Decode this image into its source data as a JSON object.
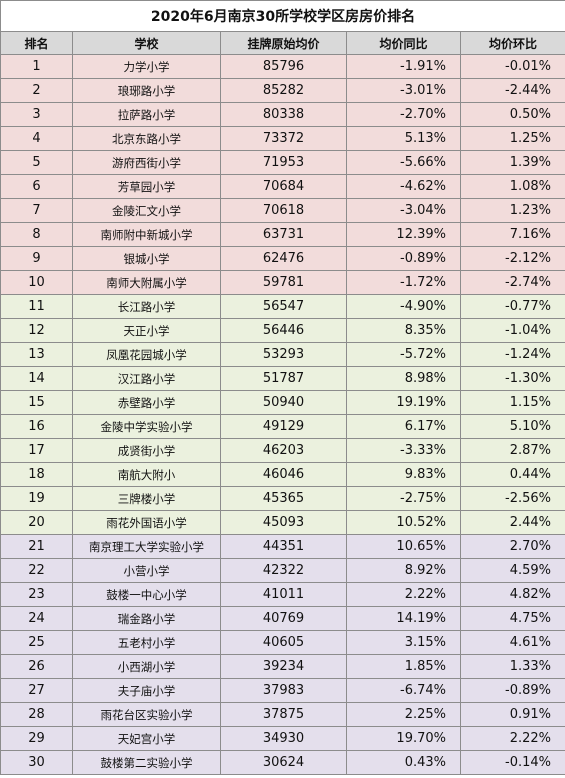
{
  "title": "2020年6月南京30所学校学区房房价排名",
  "headers": [
    "排名",
    "学校",
    "挂牌原始均价",
    "均价同比",
    "均价环比"
  ],
  "group_colors": {
    "1": "#f2dcdb",
    "2": "#ebf1de",
    "3": "#e4dfec"
  },
  "rows": [
    {
      "rank": "1",
      "school": "力学小学",
      "price": "85796",
      "yoy": "-1.91%",
      "mom": "-0.01%",
      "group": 1
    },
    {
      "rank": "2",
      "school": "琅琊路小学",
      "price": "85282",
      "yoy": "-3.01%",
      "mom": "-2.44%",
      "group": 1
    },
    {
      "rank": "3",
      "school": "拉萨路小学",
      "price": "80338",
      "yoy": "-2.70%",
      "mom": "0.50%",
      "group": 1
    },
    {
      "rank": "4",
      "school": "北京东路小学",
      "price": "73372",
      "yoy": "5.13%",
      "mom": "1.25%",
      "group": 1
    },
    {
      "rank": "5",
      "school": "游府西街小学",
      "price": "71953",
      "yoy": "-5.66%",
      "mom": "1.39%",
      "group": 1
    },
    {
      "rank": "6",
      "school": "芳草园小学",
      "price": "70684",
      "yoy": "-4.62%",
      "mom": "1.08%",
      "group": 1
    },
    {
      "rank": "7",
      "school": "金陵汇文小学",
      "price": "70618",
      "yoy": "-3.04%",
      "mom": "1.23%",
      "group": 1
    },
    {
      "rank": "8",
      "school": "南师附中新城小学",
      "price": "63731",
      "yoy": "12.39%",
      "mom": "7.16%",
      "group": 1
    },
    {
      "rank": "9",
      "school": "银城小学",
      "price": "62476",
      "yoy": "-0.89%",
      "mom": "-2.12%",
      "group": 1
    },
    {
      "rank": "10",
      "school": "南师大附属小学",
      "price": "59781",
      "yoy": "-1.72%",
      "mom": "-2.74%",
      "group": 1
    },
    {
      "rank": "11",
      "school": "长江路小学",
      "price": "56547",
      "yoy": "-4.90%",
      "mom": "-0.77%",
      "group": 2
    },
    {
      "rank": "12",
      "school": "天正小学",
      "price": "56446",
      "yoy": "8.35%",
      "mom": "-1.04%",
      "group": 2
    },
    {
      "rank": "13",
      "school": "凤凰花园城小学",
      "price": "53293",
      "yoy": "-5.72%",
      "mom": "-1.24%",
      "group": 2
    },
    {
      "rank": "14",
      "school": "汉江路小学",
      "price": "51787",
      "yoy": "8.98%",
      "mom": "-1.30%",
      "group": 2
    },
    {
      "rank": "15",
      "school": "赤壁路小学",
      "price": "50940",
      "yoy": "19.19%",
      "mom": "1.15%",
      "group": 2
    },
    {
      "rank": "16",
      "school": "金陵中学实验小学",
      "price": "49129",
      "yoy": "6.17%",
      "mom": "5.10%",
      "group": 2
    },
    {
      "rank": "17",
      "school": "成贤街小学",
      "price": "46203",
      "yoy": "-3.33%",
      "mom": "2.87%",
      "group": 2
    },
    {
      "rank": "18",
      "school": "南航大附小",
      "price": "46046",
      "yoy": "9.83%",
      "mom": "0.44%",
      "group": 2
    },
    {
      "rank": "19",
      "school": "三牌楼小学",
      "price": "45365",
      "yoy": "-2.75%",
      "mom": "-2.56%",
      "group": 2
    },
    {
      "rank": "20",
      "school": "雨花外国语小学",
      "price": "45093",
      "yoy": "10.52%",
      "mom": "2.44%",
      "group": 2
    },
    {
      "rank": "21",
      "school": "南京理工大学实验小学",
      "price": "44351",
      "yoy": "10.65%",
      "mom": "2.70%",
      "group": 3
    },
    {
      "rank": "22",
      "school": "小营小学",
      "price": "42322",
      "yoy": "8.92%",
      "mom": "4.59%",
      "group": 3
    },
    {
      "rank": "23",
      "school": "鼓楼一中心小学",
      "price": "41011",
      "yoy": "2.22%",
      "mom": "4.82%",
      "group": 3
    },
    {
      "rank": "24",
      "school": "瑞金路小学",
      "price": "40769",
      "yoy": "14.19%",
      "mom": "4.75%",
      "group": 3
    },
    {
      "rank": "25",
      "school": "五老村小学",
      "price": "40605",
      "yoy": "3.15%",
      "mom": "4.61%",
      "group": 3
    },
    {
      "rank": "26",
      "school": "小西湖小学",
      "price": "39234",
      "yoy": "1.85%",
      "mom": "1.33%",
      "group": 3
    },
    {
      "rank": "27",
      "school": "夫子庙小学",
      "price": "37983",
      "yoy": "-6.74%",
      "mom": "-0.89%",
      "group": 3
    },
    {
      "rank": "28",
      "school": "雨花台区实验小学",
      "price": "37875",
      "yoy": "2.25%",
      "mom": "0.91%",
      "group": 3
    },
    {
      "rank": "29",
      "school": "天妃宫小学",
      "price": "34930",
      "yoy": "19.70%",
      "mom": "2.22%",
      "group": 3
    },
    {
      "rank": "30",
      "school": "鼓楼第二实验小学",
      "price": "30624",
      "yoy": "0.43%",
      "mom": "-0.14%",
      "group": 3
    }
  ]
}
